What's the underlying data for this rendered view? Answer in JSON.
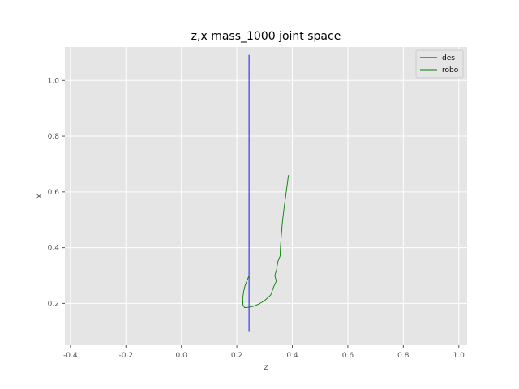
{
  "chart_data": {
    "type": "line",
    "title": "z,x mass_1000 joint space",
    "xlabel": "z",
    "ylabel": "x",
    "xlim": [
      -0.42,
      1.03
    ],
    "ylim": [
      0.05,
      1.12
    ],
    "xticks": [
      -0.4,
      -0.2,
      0.0,
      0.2,
      0.4,
      0.6,
      0.8,
      1.0
    ],
    "yticks": [
      0.2,
      0.4,
      0.6,
      0.8,
      1.0
    ],
    "grid": true,
    "legend_position": "top-right",
    "series": [
      {
        "name": "des",
        "color": "#0000ff",
        "x": [
          0.244,
          0.244
        ],
        "y": [
          0.098,
          1.092
        ]
      },
      {
        "name": "robo",
        "color": "#008000",
        "x": [
          0.386,
          0.378,
          0.37,
          0.364,
          0.36,
          0.357,
          0.356,
          0.348,
          0.343,
          0.337,
          0.342,
          0.333,
          0.322,
          0.3,
          0.28,
          0.26,
          0.24,
          0.228,
          0.222,
          0.221,
          0.224,
          0.23,
          0.238,
          0.244
        ],
        "y": [
          0.66,
          0.6,
          0.54,
          0.49,
          0.44,
          0.4,
          0.37,
          0.35,
          0.32,
          0.3,
          0.28,
          0.26,
          0.23,
          0.21,
          0.198,
          0.19,
          0.186,
          0.185,
          0.195,
          0.215,
          0.24,
          0.265,
          0.285,
          0.3
        ]
      }
    ]
  }
}
